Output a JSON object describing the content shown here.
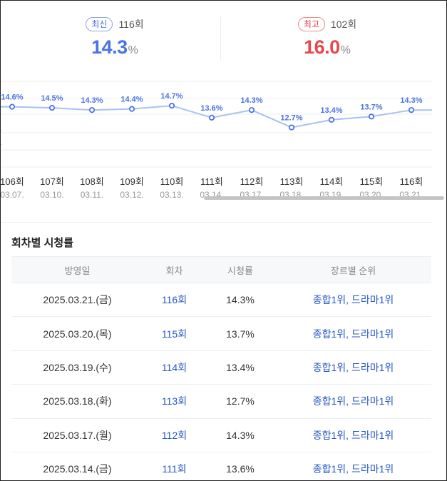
{
  "summary": {
    "latest": {
      "badge": "최신",
      "episode": "116회",
      "value": "14.3",
      "unit": "%"
    },
    "highest": {
      "badge": "최고",
      "episode": "102회",
      "value": "16.0",
      "unit": "%"
    }
  },
  "chart_data": {
    "type": "line",
    "categories": [
      "106회",
      "107회",
      "108회",
      "109회",
      "110회",
      "111회",
      "112회",
      "113회",
      "114회",
      "115회",
      "116회"
    ],
    "dates": [
      "03.07.",
      "03.10.",
      "03.11.",
      "03.12.",
      "03.13.",
      "03.14.",
      "03.17.",
      "03.18.",
      "03.19.",
      "03.20.",
      "03.21."
    ],
    "values": [
      14.6,
      14.5,
      14.3,
      14.4,
      14.7,
      13.6,
      14.3,
      12.7,
      13.4,
      13.7,
      14.3
    ],
    "value_labels": [
      "14.6%",
      "14.5%",
      "14.3%",
      "14.4%",
      "14.7%",
      "13.6%",
      "14.3%",
      "12.7%",
      "13.4%",
      "13.7%",
      "14.3%"
    ],
    "ylim": [
      9.0,
      17.0
    ],
    "grid": true,
    "colors": {
      "line": "#a8c0f5",
      "point": "#4a73e8",
      "label": "#4a73e8"
    }
  },
  "table": {
    "title": "회차별 시청률",
    "headers": [
      "방영일",
      "회차",
      "시청률",
      "장르별 순위"
    ],
    "rows": [
      {
        "date": "2025.03.21.(금)",
        "episode": "116회",
        "rating": "14.3%",
        "rank": "종합1위, 드라마1위"
      },
      {
        "date": "2025.03.20.(목)",
        "episode": "115회",
        "rating": "13.7%",
        "rank": "종합1위, 드라마1위"
      },
      {
        "date": "2025.03.19.(수)",
        "episode": "114회",
        "rating": "13.4%",
        "rank": "종합1위, 드라마1위"
      },
      {
        "date": "2025.03.18.(화)",
        "episode": "113회",
        "rating": "12.7%",
        "rank": "종합1위, 드라마1위"
      },
      {
        "date": "2025.03.17.(월)",
        "episode": "112회",
        "rating": "14.3%",
        "rank": "종합1위, 드라마1위"
      },
      {
        "date": "2025.03.14.(금)",
        "episode": "111회",
        "rating": "13.6%",
        "rank": "종합1위, 드라마1위"
      }
    ]
  }
}
